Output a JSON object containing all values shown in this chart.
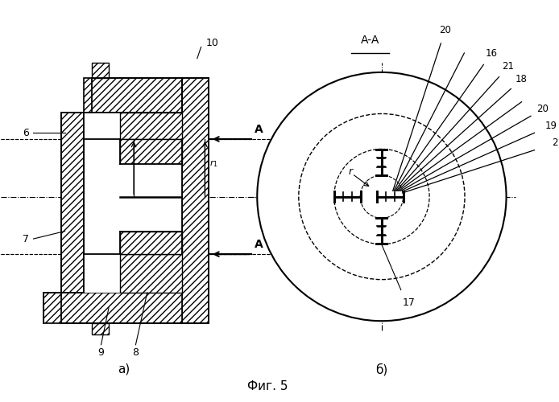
{
  "fig_width": 6.94,
  "fig_height": 5.0,
  "dpi": 100,
  "bg_color": "#ffffff",
  "title": "Фиг. 5",
  "label_a": "а)",
  "label_b": "б)"
}
